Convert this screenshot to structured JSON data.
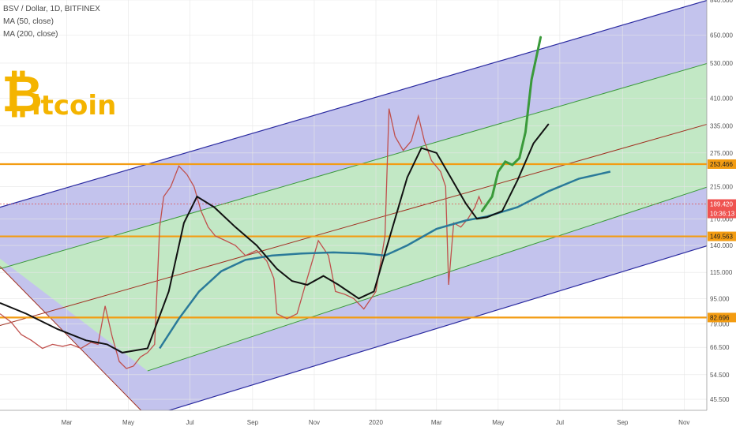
{
  "legend": {
    "title": "BSV / Dollar, 1D, BITFINEX",
    "ma50": "MA (50, close)",
    "ma200": "MA (200, close)"
  },
  "logo": {
    "text": "Bitcoin"
  },
  "colors": {
    "channel_outer": "#2a2aa0",
    "channel_fill_outer": "#b8b8ea",
    "channel_fill_inner": "#c2ecc0",
    "channel_inner_line": "#3a9a3a",
    "channel_mid_line": "#a03020",
    "horizontal_level": "#f39c12",
    "ma50": "#111111",
    "ma200": "#2a7a99",
    "forecast": "#3a9a3a",
    "candle_up": "#26a69a",
    "candle_down": "#ef5350"
  },
  "chart_data": {
    "type": "line",
    "title": "BSV / Dollar, 1D, BITFINEX",
    "y_scale": "log",
    "ylim": [
      42,
      840
    ],
    "y_ticks": [
      45.5,
      54.5,
      66.5,
      79,
      95,
      115,
      140,
      170,
      215,
      275,
      335,
      410,
      530,
      650,
      840
    ],
    "y_tick_labels": [
      "45.500",
      "54.500",
      "66.500",
      "79.000",
      "95.000",
      "115.000",
      "140.000",
      "170.000",
      "215.000",
      "275.000",
      "335.000",
      "410.000",
      "530.000",
      "650.000",
      "840.000"
    ],
    "x_tick_labels": [
      "Mar",
      "May",
      "Jul",
      "Sep",
      "Nov",
      "2020",
      "Mar",
      "May",
      "Jul",
      "Sep",
      "Nov"
    ],
    "x_ticks": [
      "2019-03-01",
      "2019-05-01",
      "2019-07-01",
      "2019-09-01",
      "2019-11-01",
      "2020-01-01",
      "2020-03-01",
      "2020-05-01",
      "2020-07-01",
      "2020-09-01",
      "2020-11-01"
    ],
    "horizontal_levels": [
      {
        "value": 253.466,
        "label": "253.466"
      },
      {
        "value": 149.563,
        "label": "149.563"
      },
      {
        "value": 82.696,
        "label": "82.696"
      }
    ],
    "last_price": {
      "value": 189.42,
      "label": "189.420",
      "countdown": "10:36:13"
    },
    "price_series": {
      "name": "BSV / Dollar",
      "points": [
        [
          "2018-12-25",
          85
        ],
        [
          "2019-01-05",
          80
        ],
        [
          "2019-01-15",
          73
        ],
        [
          "2019-01-25",
          70
        ],
        [
          "2019-02-05",
          66
        ],
        [
          "2019-02-15",
          68
        ],
        [
          "2019-02-25",
          67
        ],
        [
          "2019-03-05",
          68
        ],
        [
          "2019-03-15",
          66
        ],
        [
          "2019-03-25",
          69
        ],
        [
          "2019-04-01",
          68
        ],
        [
          "2019-04-08",
          90
        ],
        [
          "2019-04-15",
          72
        ],
        [
          "2019-04-22",
          60
        ],
        [
          "2019-04-29",
          57
        ],
        [
          "2019-05-06",
          58
        ],
        [
          "2019-05-13",
          62
        ],
        [
          "2019-05-20",
          64
        ],
        [
          "2019-05-27",
          68
        ],
        [
          "2019-06-01",
          160
        ],
        [
          "2019-06-05",
          200
        ],
        [
          "2019-06-12",
          215
        ],
        [
          "2019-06-20",
          250
        ],
        [
          "2019-06-28",
          235
        ],
        [
          "2019-07-05",
          215
        ],
        [
          "2019-07-12",
          180
        ],
        [
          "2019-07-19",
          160
        ],
        [
          "2019-07-26",
          150
        ],
        [
          "2019-08-05",
          145
        ],
        [
          "2019-08-15",
          140
        ],
        [
          "2019-08-25",
          130
        ],
        [
          "2019-09-05",
          135
        ],
        [
          "2019-09-15",
          125
        ],
        [
          "2019-09-22",
          110
        ],
        [
          "2019-09-25",
          85
        ],
        [
          "2019-10-05",
          82
        ],
        [
          "2019-10-15",
          85
        ],
        [
          "2019-10-25",
          110
        ],
        [
          "2019-11-05",
          145
        ],
        [
          "2019-11-15",
          130
        ],
        [
          "2019-11-22",
          100
        ],
        [
          "2019-12-01",
          98
        ],
        [
          "2019-12-10",
          95
        ],
        [
          "2019-12-20",
          88
        ],
        [
          "2020-01-01",
          100
        ],
        [
          "2020-01-10",
          150
        ],
        [
          "2020-01-14",
          380
        ],
        [
          "2020-01-20",
          310
        ],
        [
          "2020-01-28",
          280
        ],
        [
          "2020-02-05",
          300
        ],
        [
          "2020-02-12",
          360
        ],
        [
          "2020-02-18",
          300
        ],
        [
          "2020-02-25",
          260
        ],
        [
          "2020-03-05",
          240
        ],
        [
          "2020-03-10",
          215
        ],
        [
          "2020-03-13",
          105
        ],
        [
          "2020-03-18",
          165
        ],
        [
          "2020-03-25",
          160
        ],
        [
          "2020-04-01",
          170
        ],
        [
          "2020-04-08",
          185
        ],
        [
          "2020-04-12",
          200
        ],
        [
          "2020-04-15",
          189.42
        ]
      ]
    },
    "ma50": {
      "name": "MA (50, close)",
      "points": [
        [
          "2018-12-25",
          92
        ],
        [
          "2019-01-20",
          85
        ],
        [
          "2019-02-20",
          76
        ],
        [
          "2019-03-20",
          70
        ],
        [
          "2019-04-10",
          68
        ],
        [
          "2019-04-25",
          64
        ],
        [
          "2019-05-20",
          66
        ],
        [
          "2019-06-10",
          100
        ],
        [
          "2019-06-25",
          165
        ],
        [
          "2019-07-08",
          200
        ],
        [
          "2019-07-25",
          185
        ],
        [
          "2019-08-15",
          160
        ],
        [
          "2019-09-05",
          140
        ],
        [
          "2019-09-25",
          118
        ],
        [
          "2019-10-10",
          108
        ],
        [
          "2019-10-25",
          105
        ],
        [
          "2019-11-10",
          112
        ],
        [
          "2019-11-25",
          105
        ],
        [
          "2019-12-15",
          95
        ],
        [
          "2019-12-30",
          100
        ],
        [
          "2020-01-15",
          150
        ],
        [
          "2020-02-01",
          230
        ],
        [
          "2020-02-15",
          285
        ],
        [
          "2020-03-01",
          275
        ],
        [
          "2020-03-15",
          230
        ],
        [
          "2020-03-30",
          190
        ],
        [
          "2020-04-10",
          170
        ],
        [
          "2020-04-20",
          172
        ],
        [
          "2020-05-05",
          180
        ],
        [
          "2020-05-20",
          225
        ],
        [
          "2020-06-05",
          295
        ],
        [
          "2020-06-20",
          340
        ]
      ]
    },
    "ma200": {
      "name": "MA (200, close)",
      "points": [
        [
          "2019-06-01",
          66
        ],
        [
          "2019-06-20",
          82
        ],
        [
          "2019-07-10",
          100
        ],
        [
          "2019-08-01",
          116
        ],
        [
          "2019-08-25",
          126
        ],
        [
          "2019-09-20",
          130
        ],
        [
          "2019-10-20",
          132
        ],
        [
          "2019-11-20",
          133
        ],
        [
          "2019-12-20",
          132
        ],
        [
          "2020-01-10",
          130
        ],
        [
          "2020-02-01",
          140
        ],
        [
          "2020-03-01",
          158
        ],
        [
          "2020-03-30",
          168
        ],
        [
          "2020-04-20",
          173
        ],
        [
          "2020-05-20",
          185
        ],
        [
          "2020-06-20",
          208
        ],
        [
          "2020-07-20",
          228
        ],
        [
          "2020-08-20",
          240
        ]
      ]
    },
    "forecast": {
      "points": [
        [
          "2020-04-15",
          180
        ],
        [
          "2020-04-25",
          200
        ],
        [
          "2020-05-01",
          240
        ],
        [
          "2020-05-08",
          258
        ],
        [
          "2020-05-15",
          252
        ],
        [
          "2020-05-22",
          265
        ],
        [
          "2020-05-28",
          320
        ],
        [
          "2020-06-03",
          470
        ],
        [
          "2020-06-12",
          640
        ]
      ]
    },
    "channel": {
      "outer_top": [
        [
          "2018-12-25",
          185
        ],
        [
          "2020-11-25",
          840
        ]
      ],
      "inner_top": [
        [
          "2018-12-25",
          118
        ],
        [
          "2020-11-25",
          530
        ]
      ],
      "mid": [
        [
          "2018-12-25",
          78
        ],
        [
          "2020-11-25",
          340
        ]
      ],
      "inner_bottom": [
        [
          "2019-05-20",
          56
        ],
        [
          "2020-11-25",
          215
        ]
      ],
      "outer_bottom": [
        [
          "2019-05-20",
          40
        ],
        [
          "2020-11-25",
          140
        ]
      ],
      "diagonal": [
        [
          "2018-12-25",
          120
        ],
        [
          "2019-05-20",
          40
        ]
      ]
    }
  }
}
